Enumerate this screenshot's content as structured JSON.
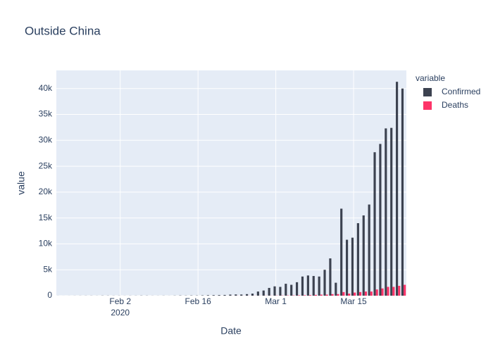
{
  "chart_data": {
    "type": "bar",
    "title": "Outside China",
    "x_label": "Date",
    "y_label": "value",
    "legend_title": "variable",
    "legend_position": "right",
    "grid": true,
    "x": [
      "2020-01-22",
      "2020-01-23",
      "2020-01-24",
      "2020-01-25",
      "2020-01-26",
      "2020-01-27",
      "2020-01-28",
      "2020-01-29",
      "2020-01-30",
      "2020-01-31",
      "2020-02-01",
      "2020-02-02",
      "2020-02-03",
      "2020-02-04",
      "2020-02-05",
      "2020-02-06",
      "2020-02-07",
      "2020-02-08",
      "2020-02-09",
      "2020-02-10",
      "2020-02-11",
      "2020-02-12",
      "2020-02-13",
      "2020-02-14",
      "2020-02-15",
      "2020-02-16",
      "2020-02-17",
      "2020-02-18",
      "2020-02-19",
      "2020-02-20",
      "2020-02-21",
      "2020-02-22",
      "2020-02-23",
      "2020-02-24",
      "2020-02-25",
      "2020-02-26",
      "2020-02-27",
      "2020-02-28",
      "2020-02-29",
      "2020-03-01",
      "2020-03-02",
      "2020-03-03",
      "2020-03-04",
      "2020-03-05",
      "2020-03-06",
      "2020-03-07",
      "2020-03-08",
      "2020-03-09",
      "2020-03-10",
      "2020-03-11",
      "2020-03-12",
      "2020-03-13",
      "2020-03-14",
      "2020-03-15",
      "2020-03-16",
      "2020-03-17",
      "2020-03-18",
      "2020-03-19",
      "2020-03-20",
      "2020-03-21",
      "2020-03-22",
      "2020-03-23",
      "2020-03-24"
    ],
    "series": [
      {
        "name": "Confirmed",
        "color": "#3c4250",
        "values": [
          7,
          4,
          7,
          12,
          14,
          17,
          18,
          11,
          28,
          24,
          17,
          21,
          12,
          18,
          19,
          30,
          24,
          14,
          12,
          20,
          10,
          27,
          43,
          31,
          46,
          38,
          63,
          97,
          110,
          121,
          142,
          208,
          235,
          222,
          300,
          400,
          800,
          1000,
          1500,
          1800,
          1700,
          2300,
          2100,
          2600,
          3700,
          3900,
          3800,
          3700,
          5000,
          7200,
          2500,
          16800,
          10800,
          11200,
          14000,
          15500,
          17600,
          27700,
          29300,
          32300,
          32400,
          41300,
          40000
        ]
      },
      {
        "name": "Deaths",
        "color": "#fd3468",
        "values": [
          0,
          0,
          0,
          0,
          0,
          0,
          0,
          0,
          0,
          0,
          0,
          1,
          0,
          0,
          0,
          0,
          0,
          0,
          0,
          0,
          0,
          0,
          1,
          0,
          1,
          0,
          1,
          1,
          1,
          2,
          3,
          6,
          10,
          9,
          12,
          13,
          15,
          20,
          18,
          30,
          40,
          50,
          60,
          80,
          90,
          110,
          150,
          200,
          200,
          300,
          300,
          700,
          400,
          600,
          700,
          800,
          800,
          1200,
          1400,
          1700,
          1700,
          1900,
          2100
        ]
      }
    ],
    "xlim": [
      "2020-01-21T12:00:00Z",
      "2020-03-24T12:00:00Z"
    ],
    "xticks": [
      {
        "value": "2020-02-02",
        "label": "Feb 2",
        "sublabel": "2020"
      },
      {
        "value": "2020-02-16",
        "label": "Feb 16"
      },
      {
        "value": "2020-03-01",
        "label": "Mar 1"
      },
      {
        "value": "2020-03-15",
        "label": "Mar 15"
      }
    ],
    "ylim": [
      0,
      43500
    ],
    "yticks": [
      0,
      {
        "value": 5000,
        "label": "5k"
      },
      {
        "value": 10000,
        "label": "10k"
      },
      {
        "value": 15000,
        "label": "15k"
      },
      {
        "value": 20000,
        "label": "20k"
      },
      {
        "value": 25000,
        "label": "25k"
      },
      {
        "value": 30000,
        "label": "30k"
      },
      {
        "value": 35000,
        "label": "35k"
      },
      {
        "value": 40000,
        "label": "40k"
      }
    ]
  }
}
